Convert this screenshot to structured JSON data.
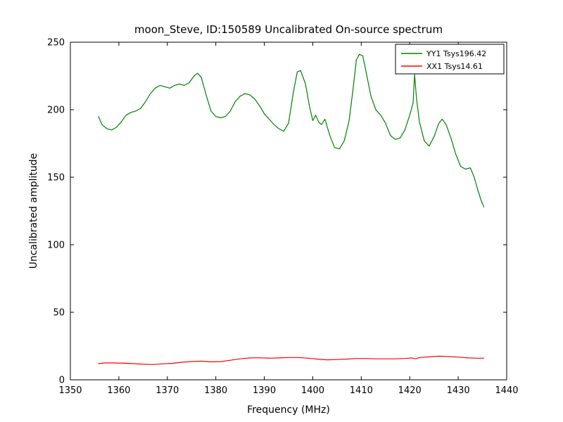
{
  "chart_data": {
    "type": "line",
    "title": "moon_Steve, ID:150589 Uncalibrated On-source spectrum",
    "xlabel": "Frequency (MHz)",
    "ylabel": "Uncalibrated amplitude",
    "xlim": [
      1350,
      1440
    ],
    "ylim": [
      0,
      250
    ],
    "xticks": [
      1350,
      1360,
      1370,
      1380,
      1390,
      1400,
      1410,
      1420,
      1430,
      1440
    ],
    "yticks": [
      0,
      50,
      100,
      150,
      200,
      250
    ],
    "grid": false,
    "legend_position": "upper right",
    "background_color": "#ffffff",
    "axis_color": "#000000",
    "series": [
      {
        "name": "YY1 Tsys196.42",
        "color": "#008000",
        "x": [
          1355.8,
          1356.5,
          1357.5,
          1358.5,
          1359.5,
          1360.5,
          1361.5,
          1362.5,
          1363.5,
          1364.5,
          1365.5,
          1366.5,
          1367.5,
          1368.5,
          1369.5,
          1370.5,
          1371.5,
          1372.5,
          1373.5,
          1374.5,
          1375.5,
          1376.2,
          1377,
          1378,
          1379,
          1380,
          1381,
          1382,
          1383,
          1384,
          1385,
          1386,
          1387,
          1388,
          1389,
          1390,
          1391,
          1392,
          1393,
          1394,
          1395,
          1396,
          1396.8,
          1397.5,
          1398.5,
          1399.3,
          1400,
          1400.6,
          1401.2,
          1401.8,
          1402.5,
          1403.5,
          1404.5,
          1405.5,
          1406.5,
          1407.5,
          1408.3,
          1409,
          1409.6,
          1410.3,
          1411,
          1412,
          1413,
          1414,
          1415,
          1416,
          1417,
          1418,
          1419,
          1420,
          1420.7,
          1421,
          1421.4,
          1422,
          1423,
          1424,
          1425,
          1426,
          1426.7,
          1427.5,
          1428.5,
          1429.5,
          1430.5,
          1431.5,
          1432.5,
          1433.3,
          1434,
          1434.7,
          1435.3
        ],
        "y": [
          195,
          189,
          186,
          185,
          187,
          191,
          196,
          198,
          199,
          201,
          206,
          212,
          216,
          218,
          217,
          216,
          218,
          219,
          218,
          220,
          225,
          227,
          224,
          211,
          199,
          195,
          194,
          195,
          199,
          206,
          210,
          212,
          211,
          208,
          203,
          197,
          193,
          189,
          186,
          184,
          190,
          213,
          228,
          229,
          219,
          203,
          192,
          196,
          191,
          189,
          193,
          181,
          172,
          171,
          177,
          192,
          215,
          237,
          241,
          240,
          228,
          210,
          200,
          196,
          190,
          181,
          178,
          179,
          185,
          196,
          205,
          226,
          208,
          191,
          177,
          173,
          180,
          190,
          193,
          189,
          179,
          167,
          158,
          156,
          157,
          150,
          141,
          133,
          128
        ]
      },
      {
        "name": "XX1 Tsys14.61",
        "color": "#ff0000",
        "x": [
          1355.8,
          1357,
          1359,
          1361,
          1363,
          1365,
          1367,
          1369,
          1371,
          1373,
          1375,
          1377,
          1379,
          1381,
          1383,
          1385,
          1387,
          1389,
          1391,
          1393,
          1395,
          1397,
          1399,
          1401,
          1403,
          1405,
          1407,
          1409,
          1411,
          1413,
          1415,
          1417,
          1419,
          1420.5,
          1421.2,
          1422,
          1424,
          1426,
          1428,
          1430,
          1432,
          1434,
          1435.3
        ],
        "y": [
          12,
          12.5,
          12.5,
          12.3,
          12,
          11.5,
          11.3,
          11.8,
          12.2,
          13,
          13.5,
          13.8,
          13.3,
          13.5,
          14.5,
          15.5,
          16.2,
          16.3,
          16,
          16.2,
          16.5,
          16.5,
          16,
          15.3,
          14.8,
          15,
          15.3,
          15.8,
          15.8,
          15.5,
          15.5,
          15.5,
          15.8,
          16.2,
          15.5,
          16.5,
          17,
          17.5,
          17.2,
          16.8,
          16.2,
          16,
          16
        ]
      }
    ]
  }
}
